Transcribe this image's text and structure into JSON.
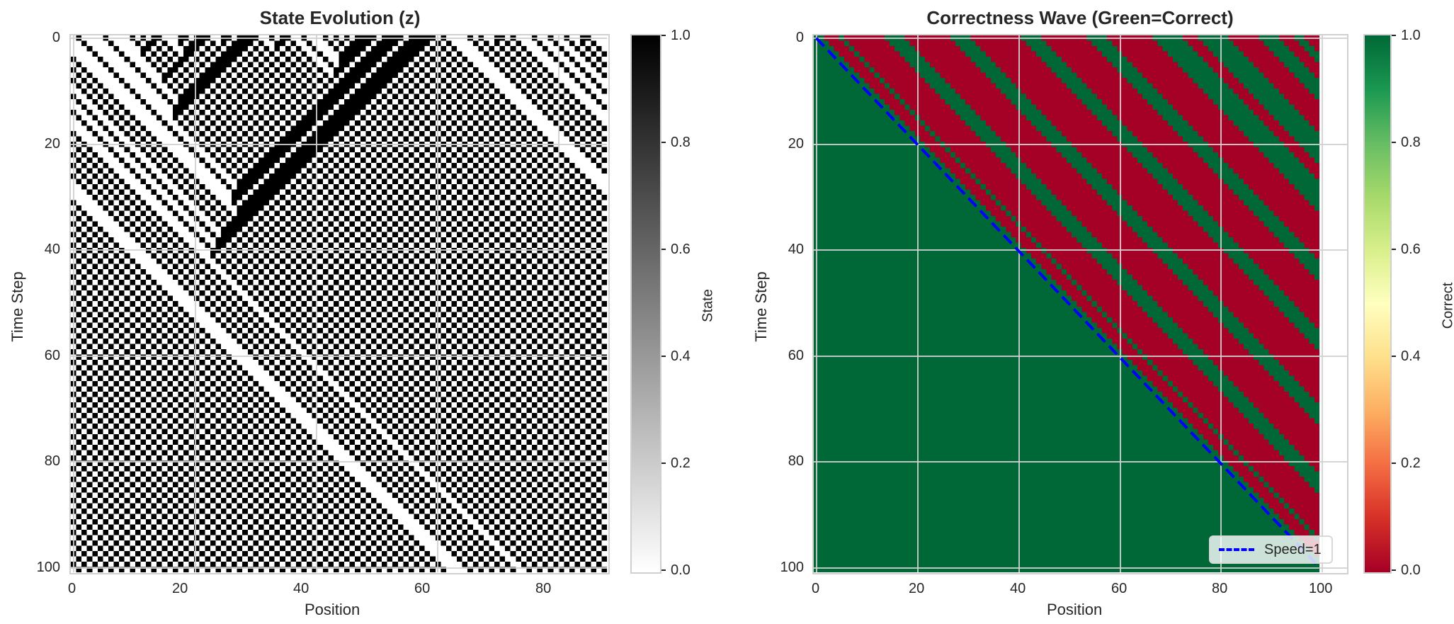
{
  "chart_data": [
    {
      "type": "heatmap",
      "title": "State Evolution (z)",
      "xlabel": "Position",
      "ylabel": "Time Step",
      "x_ticks": [
        "0",
        "20",
        "40",
        "60",
        "80"
      ],
      "y_ticks": [
        "0",
        "20",
        "40",
        "60",
        "80",
        "100"
      ],
      "xlim": [
        -0.5,
        99.5
      ],
      "ylim": [
        100.5,
        -0.5
      ],
      "grid": true,
      "colormap": "gray_r",
      "colorbar": {
        "label": "State",
        "ticks": [
          "0.0",
          "0.2",
          "0.4",
          "0.6",
          "0.8",
          "1.0"
        ],
        "range": [
          0.0,
          1.0
        ],
        "colors": [
          "#ffffff",
          "#000000"
        ]
      },
      "values_description": "Binary 101x100 grid (time x position) of a cellular automaton state; 1=black, 0=white. Diagonal staircase patterns moving right-down against vertical stripes."
    },
    {
      "type": "heatmap",
      "title": "Correctness Wave (Green=Correct)",
      "xlabel": "Position",
      "ylabel": "Time Step",
      "x_ticks": [
        "0",
        "20",
        "40",
        "60",
        "80",
        "100"
      ],
      "y_ticks": [
        "0",
        "20",
        "40",
        "60",
        "80",
        "100"
      ],
      "xlim": [
        -0.5,
        105
      ],
      "ylim": [
        100.5,
        -0.5
      ],
      "grid": true,
      "colormap": "RdYlGn",
      "colorbar": {
        "label": "Correct",
        "ticks": [
          "0.0",
          "0.2",
          "0.4",
          "0.6",
          "0.8",
          "1.0"
        ],
        "range": [
          0.0,
          1.0
        ],
        "colors": [
          "#a50026",
          "#d73027",
          "#f46d43",
          "#fdae61",
          "#fee08b",
          "#ffffbf",
          "#d9ef8b",
          "#a6d96a",
          "#66bd63",
          "#1a9850",
          "#006837"
        ]
      },
      "values_description": "Binary 101x100 grid; below the diagonal t=x all cells are correct (1, green). Above the diagonal, alternating red/green diagonal stripes moving at speed 1.",
      "series": [
        {
          "name": "Speed=1",
          "style": "dashed",
          "color": "#0000ff",
          "x": [
            0,
            100
          ],
          "y": [
            0,
            100
          ]
        }
      ],
      "legend": {
        "position": "lower right",
        "entries": [
          "Speed=1"
        ]
      }
    }
  ],
  "left": {
    "title": "State Evolution (z)",
    "xlabel": "Position",
    "ylabel": "Time Step",
    "xticks": [
      "0",
      "20",
      "40",
      "60",
      "80"
    ],
    "yticks": [
      "0",
      "20",
      "40",
      "60",
      "80",
      "100"
    ],
    "cbar_label": "State",
    "cbar_ticks": [
      "1.0",
      "0.8",
      "0.6",
      "0.4",
      "0.2",
      "0.0"
    ]
  },
  "right": {
    "title": "Correctness Wave (Green=Correct)",
    "xlabel": "Position",
    "ylabel": "Time Step",
    "xticks": [
      "0",
      "20",
      "40",
      "60",
      "80",
      "100"
    ],
    "yticks": [
      "0",
      "20",
      "40",
      "60",
      "80",
      "100"
    ],
    "cbar_label": "Correct",
    "cbar_ticks": [
      "1.0",
      "0.8",
      "0.6",
      "0.4",
      "0.2",
      "0.0"
    ],
    "legend_label": "Speed=1"
  },
  "colors": {
    "correct": "#006837",
    "incorrect": "#a50026",
    "line": "#0000ff",
    "grid": "#d0d0d0"
  }
}
